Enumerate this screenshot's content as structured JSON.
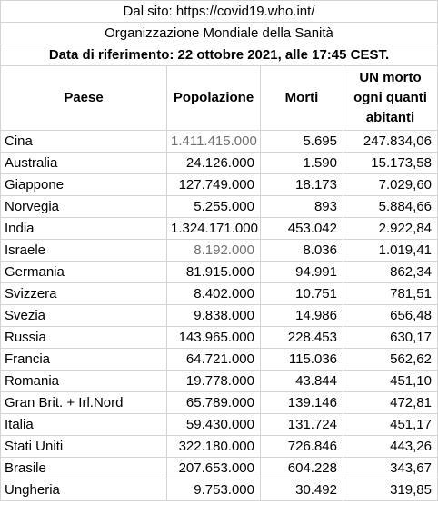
{
  "header": {
    "source_line": "Dal sito: https://covid19.who.int/",
    "org_line": "Organizzazione Mondiale della Sanità",
    "reference_line": "Data di riferimento: 22 ottobre 2021, alle 17:45 CEST."
  },
  "columns": {
    "country": "Paese",
    "population": "Popolazione",
    "deaths": "Morti",
    "ratio_line1": "UN morto",
    "ratio_line2": "ogni quanti",
    "ratio_line3": "abitanti"
  },
  "rows": [
    {
      "country": "Cina",
      "population": "1.411.415.000",
      "deaths": "5.695",
      "ratio": "247.834,06",
      "population_gray": true
    },
    {
      "country": "Australia",
      "population": "24.126.000",
      "deaths": "1.590",
      "ratio": "15.173,58"
    },
    {
      "country": "Giappone",
      "population": "127.749.000",
      "deaths": "18.173",
      "ratio": "7.029,60"
    },
    {
      "country": "Norvegia",
      "population": "5.255.000",
      "deaths": "893",
      "ratio": "5.884,66"
    },
    {
      "country": "India",
      "population": "1.324.171.000",
      "deaths": "453.042",
      "ratio": "2.922,84"
    },
    {
      "country": "Israele",
      "population": "8.192.000",
      "deaths": "8.036",
      "ratio": "1.019,41",
      "population_gray": true
    },
    {
      "country": "Germania",
      "population": "81.915.000",
      "deaths": "94.991",
      "ratio": "862,34"
    },
    {
      "country": "Svizzera",
      "population": "8.402.000",
      "deaths": "10.751",
      "ratio": "781,51"
    },
    {
      "country": "Svezia",
      "population": "9.838.000",
      "deaths": "14.986",
      "ratio": "656,48"
    },
    {
      "country": "Russia",
      "population": "143.965.000",
      "deaths": "228.453",
      "ratio": "630,17"
    },
    {
      "country": "Francia",
      "population": "64.721.000",
      "deaths": "115.036",
      "ratio": "562,62"
    },
    {
      "country": "Romania",
      "population": "19.778.000",
      "deaths": "43.844",
      "ratio": "451,10"
    },
    {
      "country": "Gran Brit. + Irl.Nord",
      "population": "65.789.000",
      "deaths": "139.146",
      "ratio": "472,81"
    },
    {
      "country": "Italia",
      "population": "59.430.000",
      "deaths": "131.724",
      "ratio": "451,17"
    },
    {
      "country": "Stati Uniti",
      "population": "322.180.000",
      "deaths": "726.846",
      "ratio": "443,26"
    },
    {
      "country": "Brasile",
      "population": "207.653.000",
      "deaths": "604.228",
      "ratio": "343,67"
    },
    {
      "country": "Ungheria",
      "population": "9.753.000",
      "deaths": "30.492",
      "ratio": "319,85"
    }
  ]
}
